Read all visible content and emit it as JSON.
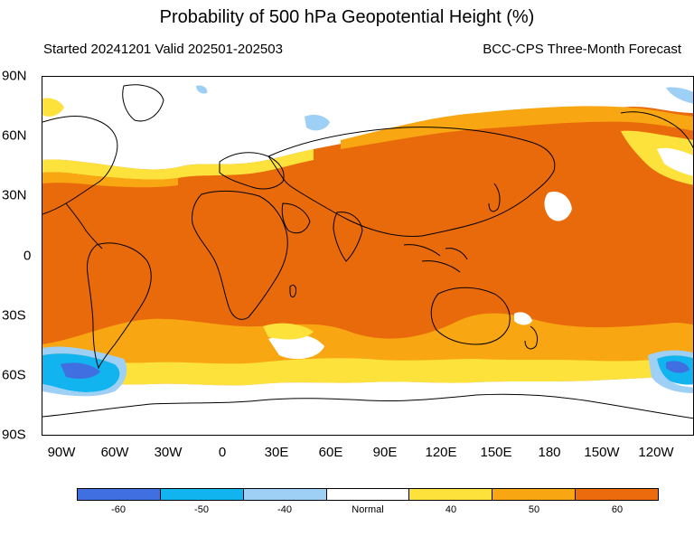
{
  "title": "Probability of 500 hPa Geopotential Height (%)",
  "subtitle_left": "Started 20241201  Valid 202501-202503",
  "subtitle_right": "BCC-CPS Three-Month Forecast",
  "lat_labels": [
    "90N",
    "60N",
    "30N",
    "0",
    "30S",
    "60S",
    "90S"
  ],
  "lon_labels": [
    "90W",
    "60W",
    "30W",
    "0",
    "30E",
    "60E",
    "90E",
    "120E",
    "150E",
    "180",
    "150W",
    "120W"
  ],
  "legend": {
    "labels": [
      "-60",
      "-50",
      "-40",
      "Normal",
      "40",
      "50",
      "60"
    ],
    "colors": [
      "#3f6fe0",
      "#12b4ef",
      "#9ed0f6",
      "#ffffff",
      "#fde23c",
      "#f8a612",
      "#ec6b0c"
    ]
  }
}
